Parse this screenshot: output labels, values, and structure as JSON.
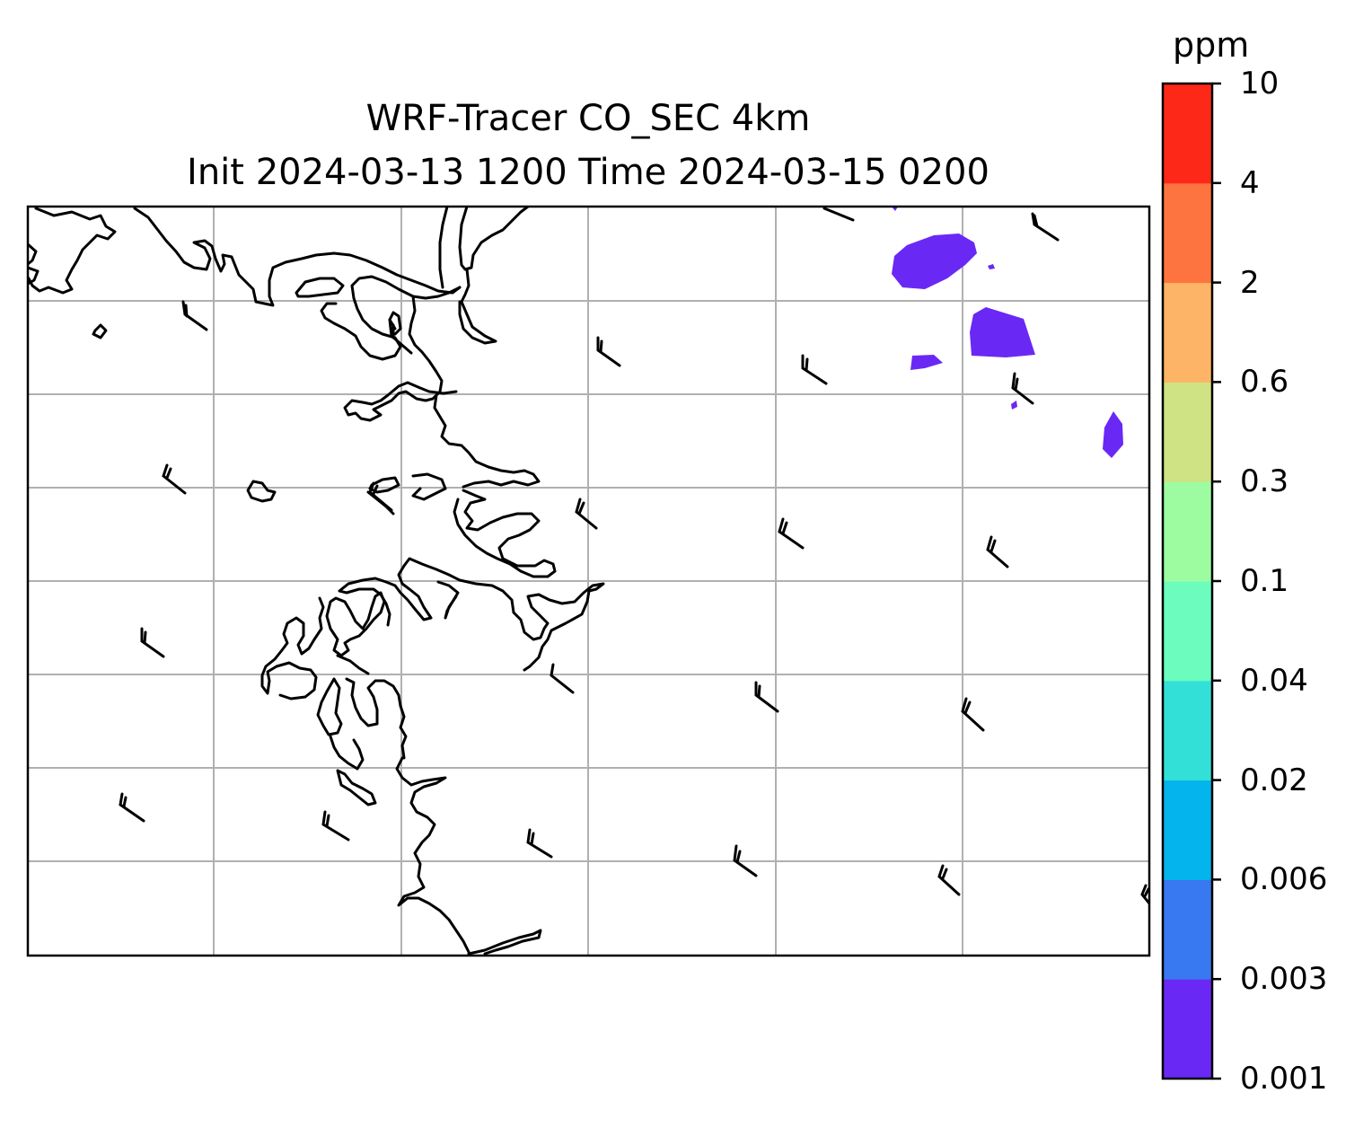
{
  "title": {
    "line1": "WRF-Tracer CO_SEC 4km",
    "line2": "Init 2024-03-13 1200 Time 2024-03-15 0200"
  },
  "colorbar": {
    "unit": "ppm",
    "ticks": [
      "0.001",
      "0.003",
      "0.006",
      "0.02",
      "0.04",
      "0.1",
      "0.3",
      "0.6",
      "2",
      "4",
      "10"
    ],
    "colors": [
      "#6a28f5",
      "#3878f0",
      "#04b4ec",
      "#33e0d8",
      "#6cfcbe",
      "#9efca0",
      "#cfe284",
      "#fdb466",
      "#fe7440",
      "#fe2818"
    ]
  },
  "map": {
    "coastline_color": "#000000",
    "grid_color": "#b0b0b0",
    "tracer_level": "0.001"
  }
}
